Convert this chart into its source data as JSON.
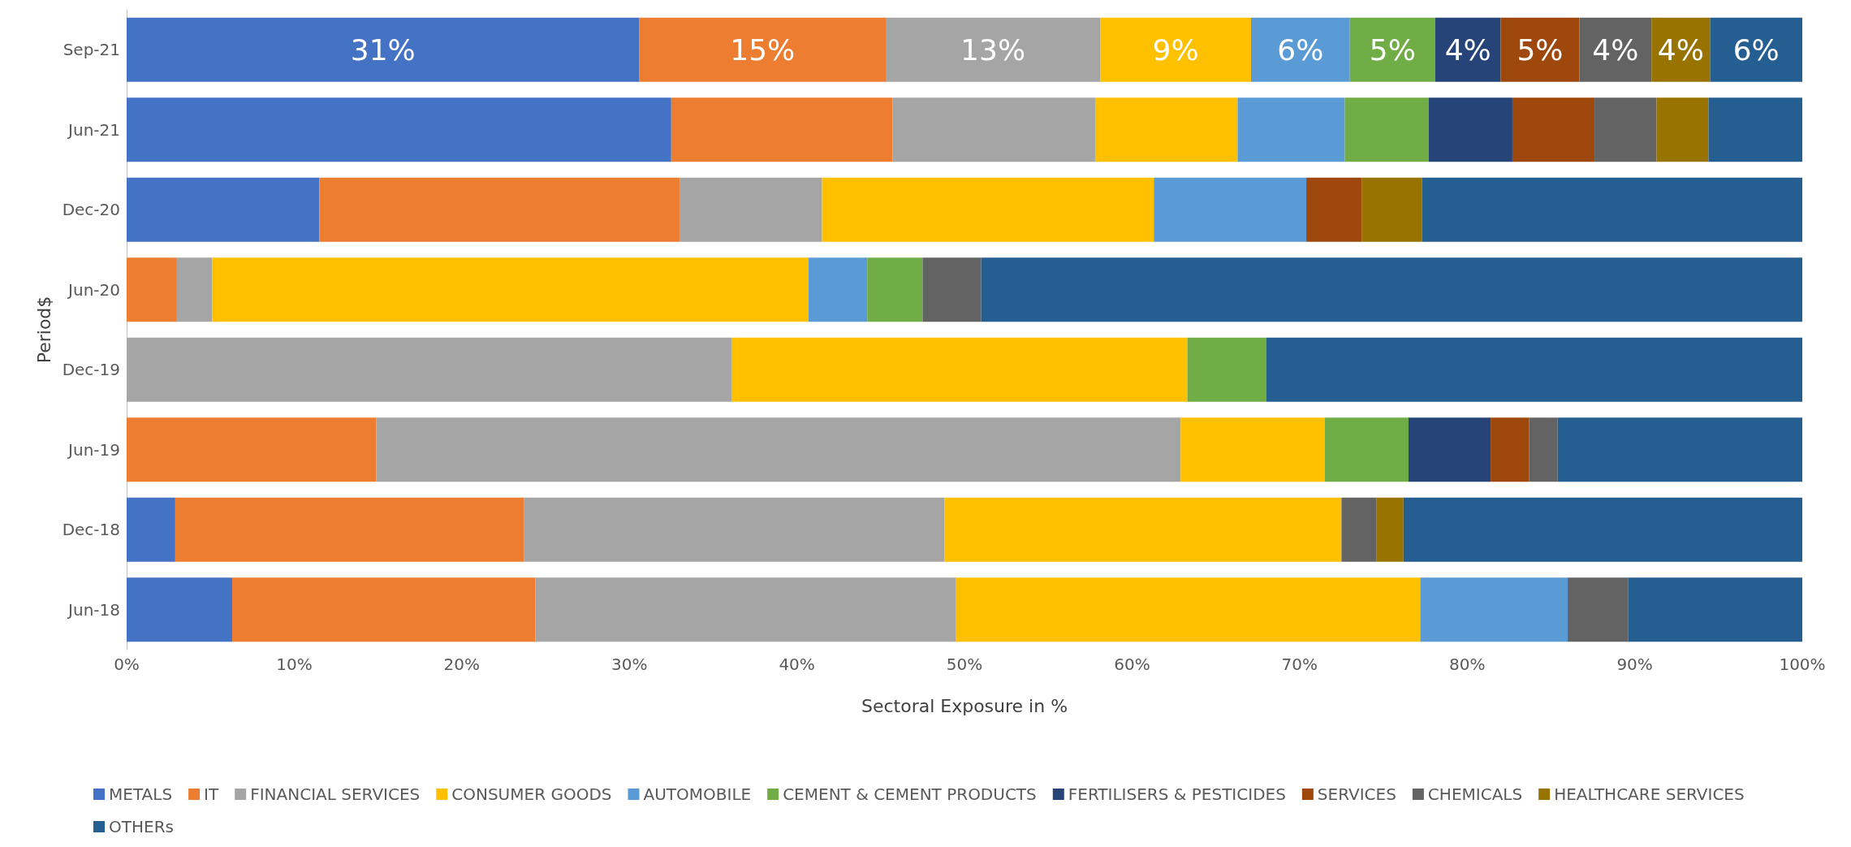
{
  "chart_data": {
    "type": "bar",
    "orientation": "horizontal",
    "stacked": true,
    "xlabel": "Sectoral Exposure in %",
    "ylabel": "Period$",
    "categories": [
      "Sep-21",
      "Jun-21",
      "Dec-20",
      "Jun-20",
      "Dec-19",
      "Jun-19",
      "Dec-18",
      "Jun-18"
    ],
    "xlim": [
      0,
      100
    ],
    "xticks": [
      {
        "value": 0,
        "label": "0%"
      },
      {
        "value": 10,
        "label": "10%"
      },
      {
        "value": 20,
        "label": "20%"
      },
      {
        "value": 30,
        "label": "30%"
      },
      {
        "value": 40,
        "label": "40%"
      },
      {
        "value": 50,
        "label": "50%"
      },
      {
        "value": 60,
        "label": "60%"
      },
      {
        "value": 70,
        "label": "70%"
      },
      {
        "value": 80,
        "label": "80%"
      },
      {
        "value": 90,
        "label": "90%"
      },
      {
        "value": 100,
        "label": "100%"
      }
    ],
    "grid": false,
    "legend": "bottom",
    "series": [
      {
        "name": "METALS",
        "color": "#4472c4",
        "values": [
          30.6,
          32.5,
          11.5,
          null,
          null,
          null,
          2.9,
          6.3
        ],
        "value_labels": [
          "31%",
          null,
          null,
          null,
          null,
          null,
          null,
          null
        ]
      },
      {
        "name": "IT",
        "color": "#ed7d31",
        "values": [
          14.7,
          13.2,
          21.5,
          3.0,
          null,
          14.9,
          20.8,
          18.1
        ],
        "value_labels": [
          "15%",
          null,
          null,
          null,
          null,
          null,
          null,
          null
        ]
      },
      {
        "name": "FINANCIAL SERVICES",
        "color": "#a5a5a5",
        "values": [
          12.8,
          12.1,
          8.5,
          2.1,
          36.1,
          48.0,
          25.1,
          25.1
        ],
        "value_labels": [
          "13%",
          null,
          null,
          null,
          null,
          null,
          null,
          null
        ]
      },
      {
        "name": "CONSUMER GOODS",
        "color": "#ffc000",
        "values": [
          9.0,
          8.5,
          19.8,
          35.6,
          27.2,
          8.6,
          23.7,
          27.7
        ],
        "value_labels": [
          "9%",
          null,
          null,
          null,
          null,
          null,
          null,
          null
        ]
      },
      {
        "name": "AUTOMOBILE",
        "color": "#5b9bd5",
        "values": [
          5.9,
          6.4,
          9.1,
          3.5,
          null,
          null,
          null,
          8.8
        ],
        "value_labels": [
          "6%",
          null,
          null,
          null,
          null,
          null,
          null,
          null
        ]
      },
      {
        "name": "CEMENT & CEMENT PRODUCTS",
        "color": "#70ad47",
        "values": [
          5.1,
          5.0,
          null,
          3.3,
          4.7,
          5.0,
          null,
          null
        ],
        "value_labels": [
          "5%",
          null,
          null,
          null,
          null,
          null,
          null,
          null
        ]
      },
      {
        "name": "FERTILISERS & PESTICIDES",
        "color": "#264478",
        "values": [
          3.9,
          5.0,
          null,
          null,
          null,
          4.9,
          null,
          null
        ],
        "value_labels": [
          "4%",
          null,
          null,
          null,
          null,
          null,
          null,
          null
        ]
      },
      {
        "name": "SERVICES",
        "color": "#9e480e",
        "values": [
          4.7,
          4.9,
          3.3,
          null,
          null,
          2.3,
          null,
          null
        ],
        "value_labels": [
          "5%",
          null,
          null,
          null,
          null,
          null,
          null,
          null
        ]
      },
      {
        "name": "CHEMICALS",
        "color": "#636363",
        "values": [
          4.3,
          3.7,
          null,
          3.5,
          null,
          1.7,
          2.1,
          3.6
        ],
        "value_labels": [
          "4%",
          null,
          null,
          null,
          null,
          null,
          null,
          null
        ]
      },
      {
        "name": "HEALTHCARE SERVICES",
        "color": "#997300",
        "values": [
          3.5,
          3.1,
          3.6,
          null,
          null,
          null,
          1.6,
          null
        ],
        "value_labels": [
          "4%",
          null,
          null,
          null,
          null,
          null,
          null,
          null
        ]
      },
      {
        "name": "OTHERs",
        "color": "#255e91",
        "values": [
          5.5,
          5.6,
          22.7,
          49.0,
          32.0,
          14.6,
          23.8,
          10.4
        ],
        "value_labels": [
          "6%",
          null,
          null,
          null,
          null,
          null,
          null,
          null
        ]
      }
    ]
  }
}
